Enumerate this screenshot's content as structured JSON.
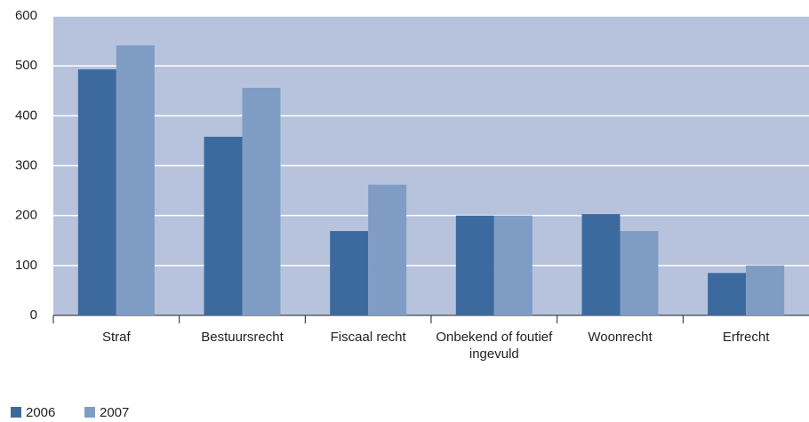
{
  "chart_data": {
    "type": "bar",
    "categories": [
      "Straf",
      "Bestuursrecht",
      "Fiscaal recht",
      "Onbekend of foutief ingevuld",
      "Woonrecht",
      "Erfrecht"
    ],
    "series": [
      {
        "name": "2006",
        "color": "#3d6a9e",
        "values": [
          493,
          358,
          169,
          200,
          203,
          85
        ]
      },
      {
        "name": "2007",
        "color": "#7f9cc4",
        "values": [
          541,
          456,
          262,
          200,
          169,
          100
        ]
      }
    ],
    "ylim": [
      0,
      600
    ],
    "yticks": [
      0,
      100,
      200,
      300,
      400,
      500,
      600
    ],
    "grid": true,
    "legend": "bottom-left"
  }
}
